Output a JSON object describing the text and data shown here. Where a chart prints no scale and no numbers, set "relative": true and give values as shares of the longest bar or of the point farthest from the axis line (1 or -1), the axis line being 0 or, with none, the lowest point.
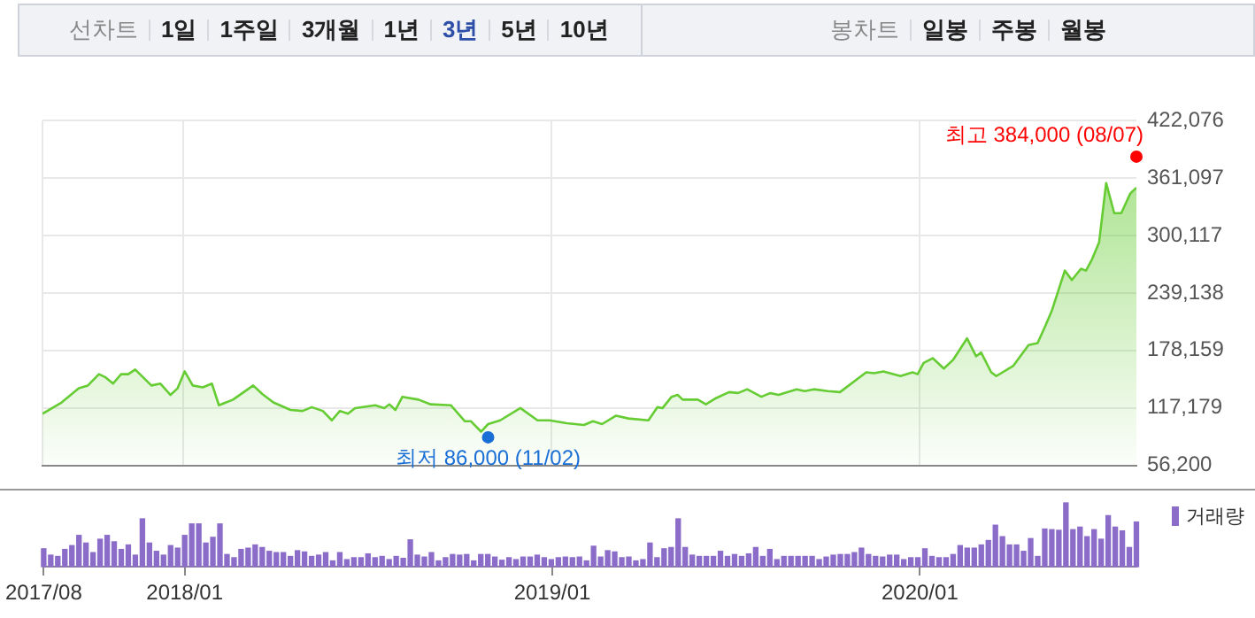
{
  "chart_data": [
    {
      "type": "area",
      "annotations": [
        {
          "text": "최고 384,000 (08/07)",
          "x": "2020-08-03",
          "y": 384000
        },
        {
          "text": "최저 86,000 (11/02)",
          "x": "2018-10-30",
          "y": 86000
        },
        "선차트",
        "1일",
        "1주일",
        "3개월",
        "1년",
        "3년",
        "5년",
        "10년",
        "봉차트",
        "일봉",
        "주봉",
        "월봉"
      ],
      "x": [
        "2017-08-14",
        "2017-09-02",
        "2017-09-19",
        "2017-09-28",
        "2017-10-09",
        "2017-10-15",
        "2017-10-23",
        "2017-10-31",
        "2017-11-07",
        "2017-11-14",
        "2017-11-30",
        "2017-12-09",
        "2017-12-19",
        "2017-12-26",
        "2018-01-02",
        "2018-01-10",
        "2018-01-20",
        "2018-01-29",
        "2018-02-05",
        "2018-02-19",
        "2018-03-11",
        "2018-03-20",
        "2018-03-31",
        "2018-04-17",
        "2018-04-29",
        "2018-05-08",
        "2018-05-19",
        "2018-05-28",
        "2018-06-05",
        "2018-06-13",
        "2018-06-20",
        "2018-07-10",
        "2018-07-19",
        "2018-07-24",
        "2018-07-30",
        "2018-08-06",
        "2018-08-22",
        "2018-09-03",
        "2018-09-23",
        "2018-10-07",
        "2018-10-13",
        "2018-10-23",
        "2018-10-30",
        "2018-11-11",
        "2018-12-01",
        "2018-12-18",
        "2018-12-30",
        "2019-01-16",
        "2019-02-02",
        "2019-02-11",
        "2019-02-20",
        "2019-03-06",
        "2019-03-18",
        "2019-04-07",
        "2019-04-16",
        "2019-04-21",
        "2019-04-30",
        "2019-05-06",
        "2019-05-11",
        "2019-05-26",
        "2019-06-03",
        "2019-06-12",
        "2019-06-26",
        "2019-07-05",
        "2019-07-14",
        "2019-07-28",
        "2019-08-06",
        "2019-08-14",
        "2019-09-01",
        "2019-09-09",
        "2019-09-18",
        "2019-10-02",
        "2019-10-14",
        "2019-11-09",
        "2019-11-17",
        "2019-11-26",
        "2019-12-13",
        "2019-12-25",
        "2019-12-30",
        "2020-01-05",
        "2020-01-14",
        "2020-01-25",
        "2020-02-03",
        "2020-02-17",
        "2020-02-26",
        "2020-03-02",
        "2020-03-12",
        "2020-03-17",
        "2020-04-03",
        "2020-04-18",
        "2020-04-27",
        "2020-05-05",
        "2020-05-11",
        "2020-05-24",
        "2020-05-31",
        "2020-06-09",
        "2020-06-14",
        "2020-06-20",
        "2020-06-27",
        "2020-07-04",
        "2020-07-12",
        "2020-07-19",
        "2020-07-28",
        "2020-08-03"
      ],
      "series": [
        {
          "type": "scatter",
          "marker": "circle",
          "colors": [
            "#ff0000",
            "#1a6fd6"
          ],
          "x": [
            "2020-08-03",
            "2018-10-30"
          ],
          "values": [
            384000,
            86000
          ]
        },
        {
          "color": "#66cc33",
          "values": [
            111000,
            123000,
            138000,
            141000,
            153000,
            150000,
            143000,
            153000,
            153000,
            158000,
            141000,
            143000,
            131000,
            138000,
            156000,
            141000,
            139000,
            143000,
            120000,
            126000,
            141000,
            132000,
            123000,
            115000,
            114000,
            118000,
            114000,
            104000,
            114000,
            111000,
            117000,
            120000,
            117000,
            121000,
            115000,
            129000,
            126000,
            121000,
            120000,
            103000,
            103000,
            92000,
            100000,
            104000,
            117000,
            104000,
            104000,
            101000,
            99000,
            103000,
            100000,
            109000,
            106000,
            104000,
            118000,
            117000,
            129000,
            131000,
            126000,
            126000,
            121000,
            127000,
            134000,
            133000,
            137000,
            129000,
            133000,
            131000,
            137000,
            135000,
            137000,
            135000,
            134000,
            155000,
            154000,
            156000,
            151000,
            155000,
            153000,
            165000,
            170000,
            159000,
            168000,
            191000,
            172000,
            176000,
            155000,
            151000,
            162000,
            184000,
            186000,
            205000,
            220000,
            263000,
            253000,
            265000,
            263000,
            275000,
            293000,
            356000,
            324000,
            324000,
            345000,
            351000
          ]
        }
      ],
      "xlim": [
        "2017-08-14",
        "2020-08-03"
      ],
      "xticks": [
        {
          "value": "2017-08-14",
          "label": null
        },
        {
          "value": "2018-01-01",
          "label": null
        },
        {
          "value": "2019-01-01",
          "label": null
        },
        {
          "value": "2020-01-01",
          "label": null
        }
      ],
      "ylim": [
        56200,
        422076
      ],
      "yticks": [
        {
          "value": 56200,
          "label": "56,200"
        },
        {
          "value": 117179,
          "label": "117,179"
        },
        {
          "value": 178159,
          "label": "178,159"
        },
        {
          "value": 239138,
          "label": "239,138"
        },
        {
          "value": 300117,
          "label": "300,117"
        },
        {
          "value": 361097,
          "label": "361,097"
        },
        {
          "value": 422076,
          "label": "422,076"
        }
      ],
      "grid": true,
      "tick_labels": "y"
    },
    {
      "type": "bar",
      "relative": true,
      "legend": "top right",
      "tick_labels": "x",
      "x": [
        "2017-08-14",
        "2017-08-21",
        "2017-08-28",
        "2017-09-04",
        "2017-09-11",
        "2017-09-18",
        "2017-09-25",
        "2017-10-02",
        "2017-10-09",
        "2017-10-16",
        "2017-10-23",
        "2017-10-30",
        "2017-11-06",
        "2017-11-13",
        "2017-11-20",
        "2017-11-27",
        "2017-12-04",
        "2017-12-11",
        "2017-12-18",
        "2017-12-25",
        "2018-01-01",
        "2018-01-08",
        "2018-01-15",
        "2018-01-22",
        "2018-01-29",
        "2018-02-05",
        "2018-02-12",
        "2018-02-19",
        "2018-02-26",
        "2018-03-05",
        "2018-03-12",
        "2018-03-19",
        "2018-03-26",
        "2018-04-02",
        "2018-04-09",
        "2018-04-16",
        "2018-04-23",
        "2018-04-30",
        "2018-05-07",
        "2018-05-14",
        "2018-05-21",
        "2018-05-28",
        "2018-06-04",
        "2018-06-11",
        "2018-06-18",
        "2018-06-25",
        "2018-07-02",
        "2018-07-09",
        "2018-07-16",
        "2018-07-23",
        "2018-07-30",
        "2018-08-06",
        "2018-08-13",
        "2018-08-20",
        "2018-08-27",
        "2018-09-03",
        "2018-09-10",
        "2018-09-17",
        "2018-09-24",
        "2018-10-01",
        "2018-10-08",
        "2018-10-15",
        "2018-10-22",
        "2018-10-29",
        "2018-11-05",
        "2018-11-12",
        "2018-11-19",
        "2018-11-26",
        "2018-12-03",
        "2018-12-10",
        "2018-12-17",
        "2018-12-24",
        "2018-12-31",
        "2019-01-07",
        "2019-01-14",
        "2019-01-21",
        "2019-01-28",
        "2019-02-04",
        "2019-02-11",
        "2019-02-18",
        "2019-02-25",
        "2019-03-04",
        "2019-03-11",
        "2019-03-18",
        "2019-03-25",
        "2019-04-01",
        "2019-04-08",
        "2019-04-15",
        "2019-04-22",
        "2019-04-29",
        "2019-05-06",
        "2019-05-13",
        "2019-05-20",
        "2019-05-27",
        "2019-06-03",
        "2019-06-10",
        "2019-06-17",
        "2019-06-24",
        "2019-07-01",
        "2019-07-08",
        "2019-07-15",
        "2019-07-22",
        "2019-07-29",
        "2019-08-05",
        "2019-08-12",
        "2019-08-19",
        "2019-08-26",
        "2019-09-02",
        "2019-09-09",
        "2019-09-16",
        "2019-09-23",
        "2019-09-30",
        "2019-10-07",
        "2019-10-14",
        "2019-10-21",
        "2019-10-28",
        "2019-11-04",
        "2019-11-11",
        "2019-11-18",
        "2019-11-25",
        "2019-12-02",
        "2019-12-09",
        "2019-12-16",
        "2019-12-23",
        "2019-12-30",
        "2020-01-06",
        "2020-01-13",
        "2020-01-20",
        "2020-01-27",
        "2020-02-03",
        "2020-02-10",
        "2020-02-17",
        "2020-02-24",
        "2020-03-02",
        "2020-03-09",
        "2020-03-16",
        "2020-03-23",
        "2020-03-30",
        "2020-04-06",
        "2020-04-13",
        "2020-04-20",
        "2020-04-27",
        "2020-05-04",
        "2020-05-11",
        "2020-05-18",
        "2020-05-25",
        "2020-06-01",
        "2020-06-08",
        "2020-06-15",
        "2020-06-22",
        "2020-06-29",
        "2020-07-06",
        "2020-07-13",
        "2020-07-20",
        "2020-07-27",
        "2020-08-03"
      ],
      "series": [
        {
          "name": "거래량",
          "color": "#8b6cc9",
          "values": [
            0.28,
            0.18,
            0.16,
            0.27,
            0.33,
            0.49,
            0.37,
            0.22,
            0.43,
            0.49,
            0.39,
            0.27,
            0.34,
            0.18,
            0.75,
            0.37,
            0.24,
            0.18,
            0.33,
            0.29,
            0.49,
            0.67,
            0.67,
            0.37,
            0.46,
            0.67,
            0.19,
            0.14,
            0.27,
            0.29,
            0.34,
            0.3,
            0.24,
            0.22,
            0.22,
            0.16,
            0.25,
            0.23,
            0.16,
            0.18,
            0.22,
            0.09,
            0.22,
            0.11,
            0.14,
            0.14,
            0.2,
            0.14,
            0.16,
            0.11,
            0.16,
            0.13,
            0.42,
            0.18,
            0.15,
            0.22,
            0.09,
            0.14,
            0.19,
            0.18,
            0.19,
            0.09,
            0.19,
            0.19,
            0.15,
            0.1,
            0.14,
            0.11,
            0.15,
            0.15,
            0.18,
            0.14,
            0.11,
            0.14,
            0.15,
            0.14,
            0.15,
            0.09,
            0.32,
            0.15,
            0.25,
            0.23,
            0.14,
            0.15,
            0.09,
            0.11,
            0.37,
            0.14,
            0.28,
            0.3,
            0.75,
            0.3,
            0.18,
            0.16,
            0.16,
            0.16,
            0.24,
            0.16,
            0.19,
            0.16,
            0.2,
            0.3,
            0.16,
            0.27,
            0.11,
            0.16,
            0.16,
            0.16,
            0.16,
            0.16,
            0.11,
            0.15,
            0.18,
            0.19,
            0.19,
            0.22,
            0.29,
            0.19,
            0.16,
            0.15,
            0.18,
            0.18,
            0.11,
            0.14,
            0.14,
            0.28,
            0.16,
            0.14,
            0.14,
            0.19,
            0.33,
            0.29,
            0.29,
            0.34,
            0.41,
            0.65,
            0.47,
            0.34,
            0.34,
            0.24,
            0.44,
            0.16,
            0.59,
            0.58,
            0.57,
            1,
            0.58,
            0.62,
            0.47,
            0.58,
            0.43,
            0.8,
            0.62,
            0.56,
            0.3,
            0.7
          ]
        }
      ],
      "xlim": [
        "2017-08-14",
        "2020-08-03"
      ],
      "xticks": [
        {
          "value": "2017-08-14",
          "label": "2017/08"
        },
        {
          "value": "2018-01-01",
          "label": "2018/01"
        },
        {
          "value": "2019-01-01",
          "label": "2019/01"
        },
        {
          "value": "2020-01-01",
          "label": "2020/01"
        }
      ]
    }
  ]
}
